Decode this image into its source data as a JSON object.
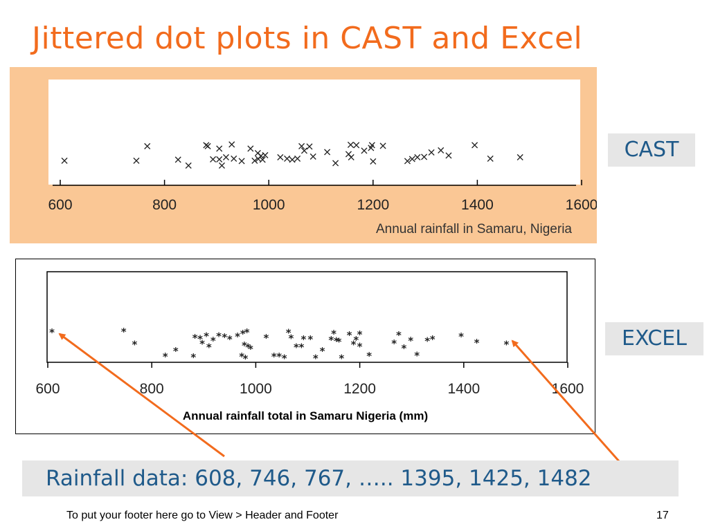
{
  "title": "Jittered dot plots in CAST and Excel",
  "labels": {
    "cast": "CAST",
    "excel": "EXCEL"
  },
  "data_text": "Rainfall data: 608, 746, 767, ….. 1395, 1425, 1482",
  "footer": "To put your footer here go to View > Header and Footer",
  "page_number": "17",
  "colors": {
    "title": "#f26b1d",
    "label_text": "#1f5a8a",
    "cast_background": "#fac795",
    "arrow": "#f26b1d",
    "label_background": "#e6e6e6"
  },
  "chart_data": [
    {
      "type": "scatter",
      "name": "CAST",
      "title": "",
      "xlabel": "Annual rainfall in Samaru, Nigeria",
      "ylabel": "",
      "xlim": [
        600,
        1600
      ],
      "xticks": [
        "600",
        "800",
        "1000",
        "1200",
        "1400",
        "1600"
      ],
      "marker": "×",
      "points": [
        {
          "x": 608,
          "jitter": 0.21
        },
        {
          "x": 746,
          "jitter": 0.21
        },
        {
          "x": 767,
          "jitter": 0.55
        },
        {
          "x": 826,
          "jitter": 0.23
        },
        {
          "x": 846,
          "jitter": 0.1
        },
        {
          "x": 880,
          "jitter": 0.57
        },
        {
          "x": 883,
          "jitter": 0.55
        },
        {
          "x": 893,
          "jitter": 0.24
        },
        {
          "x": 905,
          "jitter": 0.24
        },
        {
          "x": 905,
          "jitter": 0.49
        },
        {
          "x": 910,
          "jitter": 0.1
        },
        {
          "x": 918,
          "jitter": 0.29
        },
        {
          "x": 929,
          "jitter": 0.59
        },
        {
          "x": 933,
          "jitter": 0.26
        },
        {
          "x": 948,
          "jitter": 0.2
        },
        {
          "x": 965,
          "jitter": 0.49
        },
        {
          "x": 973,
          "jitter": 0.21
        },
        {
          "x": 979,
          "jitter": 0.39
        },
        {
          "x": 980,
          "jitter": 0.25
        },
        {
          "x": 985,
          "jitter": 0.32
        },
        {
          "x": 988,
          "jitter": 0.23
        },
        {
          "x": 993,
          "jitter": 0.34
        },
        {
          "x": 1022,
          "jitter": 0.29
        },
        {
          "x": 1035,
          "jitter": 0.26
        },
        {
          "x": 1045,
          "jitter": 0.23
        },
        {
          "x": 1055,
          "jitter": 0.26
        },
        {
          "x": 1063,
          "jitter": 0.55
        },
        {
          "x": 1068,
          "jitter": 0.44
        },
        {
          "x": 1078,
          "jitter": 0.54
        },
        {
          "x": 1085,
          "jitter": 0.31
        },
        {
          "x": 1112,
          "jitter": 0.41
        },
        {
          "x": 1128,
          "jitter": 0.15
        },
        {
          "x": 1153,
          "jitter": 0.36
        },
        {
          "x": 1157,
          "jitter": 0.58
        },
        {
          "x": 1168,
          "jitter": 0.57
        },
        {
          "x": 1158,
          "jitter": 0.29
        },
        {
          "x": 1183,
          "jitter": 0.44
        },
        {
          "x": 1196,
          "jitter": 0.51
        },
        {
          "x": 1198,
          "jitter": 0.57
        },
        {
          "x": 1200,
          "jitter": 0.19
        },
        {
          "x": 1219,
          "jitter": 0.56
        },
        {
          "x": 1266,
          "jitter": 0.2
        },
        {
          "x": 1275,
          "jitter": 0.25
        },
        {
          "x": 1285,
          "jitter": 0.29
        },
        {
          "x": 1298,
          "jitter": 0.3
        },
        {
          "x": 1312,
          "jitter": 0.4
        },
        {
          "x": 1330,
          "jitter": 0.45
        },
        {
          "x": 1345,
          "jitter": 0.33
        },
        {
          "x": 1395,
          "jitter": 0.57
        },
        {
          "x": 1425,
          "jitter": 0.26
        },
        {
          "x": 1482,
          "jitter": 0.29
        }
      ]
    },
    {
      "type": "scatter",
      "name": "Excel",
      "title": "",
      "xlabel": "Annual rainfall total in Samaru Nigeria (mm)",
      "ylabel": "",
      "xlim": [
        600,
        1600
      ],
      "xticks": [
        "600",
        "800",
        "1000",
        "1200",
        "1400",
        "1600"
      ],
      "marker": "*",
      "points": [
        {
          "x": 608,
          "jitter": 0.49
        },
        {
          "x": 746,
          "jitter": 0.5
        },
        {
          "x": 767,
          "jitter": 0.27
        },
        {
          "x": 826,
          "jitter": 0.05
        },
        {
          "x": 846,
          "jitter": 0.15
        },
        {
          "x": 880,
          "jitter": 0.04
        },
        {
          "x": 883,
          "jitter": 0.39
        },
        {
          "x": 893,
          "jitter": 0.37
        },
        {
          "x": 897,
          "jitter": 0.28
        },
        {
          "x": 905,
          "jitter": 0.42
        },
        {
          "x": 910,
          "jitter": 0.22
        },
        {
          "x": 918,
          "jitter": 0.34
        },
        {
          "x": 929,
          "jitter": 0.42
        },
        {
          "x": 940,
          "jitter": 0.4
        },
        {
          "x": 950,
          "jitter": 0.36
        },
        {
          "x": 965,
          "jitter": 0.41
        },
        {
          "x": 973,
          "jitter": 0.05
        },
        {
          "x": 975,
          "jitter": 0.46
        },
        {
          "x": 978,
          "jitter": 0.25
        },
        {
          "x": 980,
          "jitter": 0.01
        },
        {
          "x": 983,
          "jitter": 0.49
        },
        {
          "x": 985,
          "jitter": 0.22
        },
        {
          "x": 990,
          "jitter": 0.19
        },
        {
          "x": 1020,
          "jitter": 0.39
        },
        {
          "x": 1035,
          "jitter": 0.05
        },
        {
          "x": 1045,
          "jitter": 0.05
        },
        {
          "x": 1055,
          "jitter": 0.02
        },
        {
          "x": 1063,
          "jitter": 0.48
        },
        {
          "x": 1068,
          "jitter": 0.38
        },
        {
          "x": 1078,
          "jitter": 0.22
        },
        {
          "x": 1088,
          "jitter": 0.22
        },
        {
          "x": 1092,
          "jitter": 0.36
        },
        {
          "x": 1105,
          "jitter": 0.36
        },
        {
          "x": 1115,
          "jitter": 0.02
        },
        {
          "x": 1128,
          "jitter": 0.15
        },
        {
          "x": 1145,
          "jitter": 0.35
        },
        {
          "x": 1150,
          "jitter": 0.46
        },
        {
          "x": 1155,
          "jitter": 0.33
        },
        {
          "x": 1160,
          "jitter": 0.32
        },
        {
          "x": 1165,
          "jitter": 0.02
        },
        {
          "x": 1180,
          "jitter": 0.44
        },
        {
          "x": 1188,
          "jitter": 0.27
        },
        {
          "x": 1193,
          "jitter": 0.35
        },
        {
          "x": 1200,
          "jitter": 0.23
        },
        {
          "x": 1200,
          "jitter": 0.45
        },
        {
          "x": 1218,
          "jitter": 0.06
        },
        {
          "x": 1266,
          "jitter": 0.29
        },
        {
          "x": 1275,
          "jitter": 0.44
        },
        {
          "x": 1285,
          "jitter": 0.2
        },
        {
          "x": 1298,
          "jitter": 0.34
        },
        {
          "x": 1310,
          "jitter": 0.07
        },
        {
          "x": 1330,
          "jitter": 0.33
        },
        {
          "x": 1340,
          "jitter": 0.36
        },
        {
          "x": 1395,
          "jitter": 0.41
        },
        {
          "x": 1425,
          "jitter": 0.3
        },
        {
          "x": 1482,
          "jitter": 0.27
        }
      ]
    }
  ]
}
